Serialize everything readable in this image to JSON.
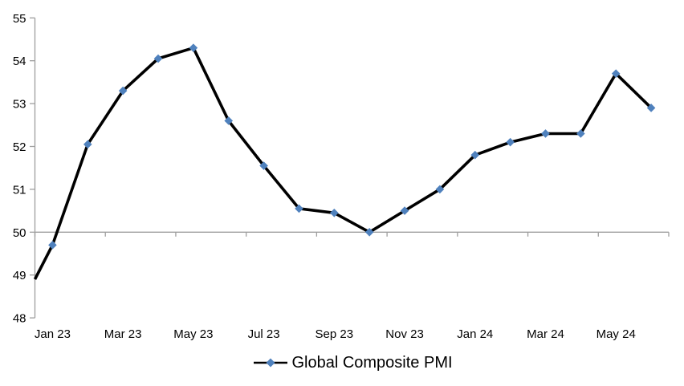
{
  "chart_data": {
    "type": "line",
    "title": "",
    "legend": "Global Composite PMI",
    "legend_position": "bottom",
    "categories": [
      "Jan 23",
      "Feb 23",
      "Mar 23",
      "Apr 23",
      "May 23",
      "Jun 23",
      "Jul 23",
      "Aug 23",
      "Sep 23",
      "Oct 23",
      "Nov 23",
      "Dec 23",
      "Jan 24",
      "Feb 24",
      "Mar 24",
      "Apr 24",
      "May 24",
      "Jun 24"
    ],
    "series": [
      {
        "name": "Global Composite PMI",
        "values": [
          49.7,
          52.05,
          53.3,
          54.05,
          54.3,
          52.6,
          51.55,
          50.55,
          50.45,
          50.0,
          50.5,
          51.0,
          51.8,
          52.1,
          52.3,
          52.3,
          53.7,
          52.9
        ]
      }
    ],
    "left_edge_entry_value": 48.9,
    "x_axis_tick_labels": [
      "Jan 23",
      "Mar 23",
      "May 23",
      "Jul 23",
      "Sep 23",
      "Nov 23",
      "Jan 24",
      "Mar 24",
      "May 24"
    ],
    "x_label_every": 2,
    "ylim": [
      48,
      55
    ],
    "y_ticks": [
      48,
      49,
      50,
      51,
      52,
      53,
      54,
      55
    ],
    "category_axis_crosses_at": 50,
    "grid": "none; horizontal category axis line drawn at value 50 with ticks",
    "marker_shape": "diamond",
    "colors": {
      "line": "#000000",
      "marker": "#4F81BD",
      "axis": "#9E9E9E",
      "text": "#000000",
      "background": "#FFFFFF"
    }
  }
}
